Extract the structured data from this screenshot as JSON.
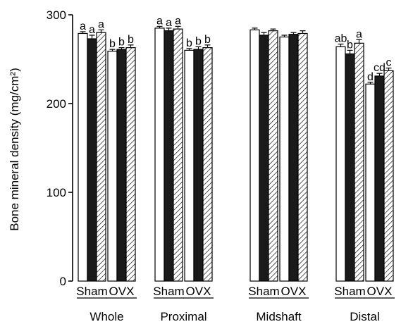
{
  "chart_data": {
    "type": "bar",
    "title": "",
    "ylabel": "Bone mineral density (mg/cm²)",
    "ylim": [
      0,
      300
    ],
    "yticks": [
      0,
      100,
      200,
      300
    ],
    "bar_fills": [
      "white",
      "black",
      "hatched"
    ],
    "categories": [
      "Whole",
      "Proximal",
      "Midshaft",
      "Distal"
    ],
    "group_labels": [
      "Sham",
      "OVX"
    ],
    "groups": [
      {
        "category": "Whole",
        "group": "Sham",
        "values": [
          279,
          273,
          280
        ],
        "errors": [
          2,
          4,
          3
        ],
        "labels": [
          "a",
          "a",
          "a"
        ]
      },
      {
        "category": "Whole",
        "group": "OVX",
        "values": [
          259,
          261,
          263
        ],
        "errors": [
          2,
          2,
          3
        ],
        "labels": [
          "b",
          "b",
          "b"
        ]
      },
      {
        "category": "Proximal",
        "group": "Sham",
        "values": [
          285,
          282,
          284
        ],
        "errors": [
          2,
          3,
          3
        ],
        "labels": [
          "a",
          "a",
          "a"
        ]
      },
      {
        "category": "Proximal",
        "group": "OVX",
        "values": [
          260,
          261,
          263
        ],
        "errors": [
          2,
          3,
          3
        ],
        "labels": [
          "b",
          "b",
          "b"
        ]
      },
      {
        "category": "Midshaft",
        "group": "Sham",
        "values": [
          283,
          277,
          282
        ],
        "errors": [
          2,
          3,
          2
        ],
        "labels": [
          "",
          "",
          ""
        ]
      },
      {
        "category": "Midshaft",
        "group": "OVX",
        "values": [
          275,
          278,
          279
        ],
        "errors": [
          2,
          2,
          3
        ],
        "labels": [
          "",
          "",
          ""
        ]
      },
      {
        "category": "Distal",
        "group": "Sham",
        "values": [
          264,
          256,
          268
        ],
        "errors": [
          3,
          4,
          4
        ],
        "labels": [
          "ab",
          "b",
          "a"
        ]
      },
      {
        "category": "Distal",
        "group": "OVX",
        "values": [
          222,
          231,
          237
        ],
        "errors": [
          2,
          3,
          3
        ],
        "labels": [
          "d",
          "cd",
          "c"
        ]
      }
    ]
  }
}
